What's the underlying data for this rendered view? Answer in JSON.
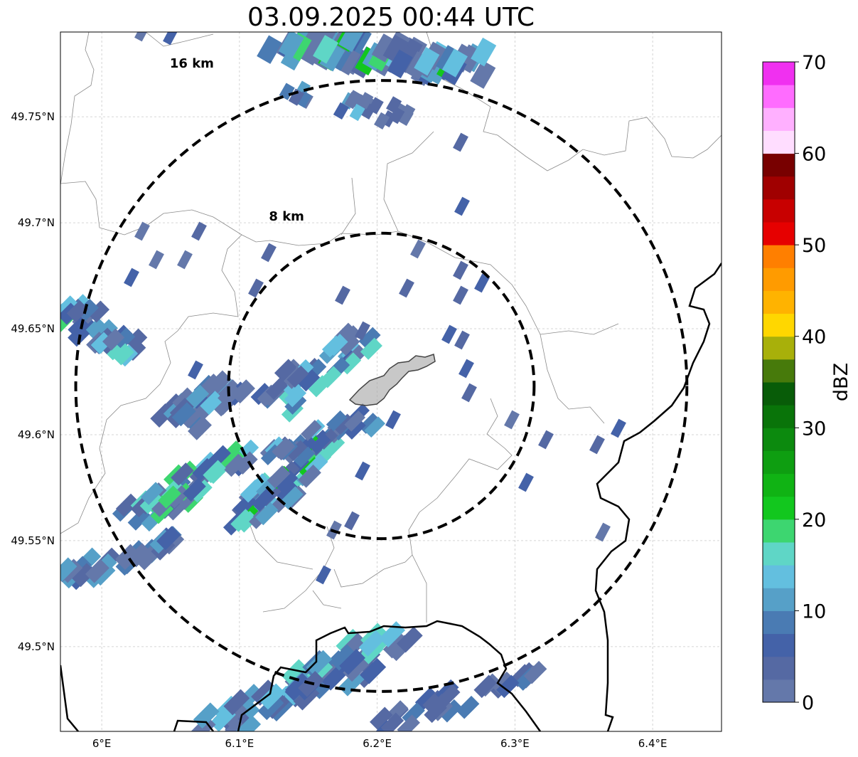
{
  "title": "03.09.2025 00:44 UTC",
  "map": {
    "x_ticks": [
      {
        "lon": 6.0,
        "label": "6°E"
      },
      {
        "lon": 6.1,
        "label": "6.1°E"
      },
      {
        "lon": 6.2,
        "label": "6.2°E"
      },
      {
        "lon": 6.3,
        "label": "6.3°E"
      },
      {
        "lon": 6.4,
        "label": "6.4°E"
      }
    ],
    "y_ticks": [
      {
        "lat": 49.75,
        "label": "49.75°N"
      },
      {
        "lat": 49.7,
        "label": "49.7°N"
      },
      {
        "lat": 49.65,
        "label": "49.65°N"
      },
      {
        "lat": 49.6,
        "label": "49.6°N"
      },
      {
        "lat": 49.55,
        "label": "49.55°N"
      },
      {
        "lat": 49.5,
        "label": "49.5°N"
      }
    ],
    "gridlines": true,
    "lon_range": [
      5.97,
      6.45
    ],
    "lat_range": [
      49.46,
      49.79
    ],
    "center": {
      "lon": 6.203,
      "lat": 49.623
    },
    "range_rings": [
      {
        "radius_km": 8,
        "label": "8 km"
      },
      {
        "radius_km": 16,
        "label": "16 km"
      }
    ]
  },
  "colorbar": {
    "label": "dBZ",
    "ticks": [
      "0",
      "10",
      "20",
      "30",
      "40",
      "50",
      "60",
      "70"
    ],
    "colors": [
      "#6478aa",
      "#5569a3",
      "#4462a8",
      "#4a7bb3",
      "#56a0c8",
      "#63bfdf",
      "#5fd6c6",
      "#3dd670",
      "#12c71e",
      "#10b314",
      "#0e9e11",
      "#0c8a0e",
      "#097409",
      "#085c08",
      "#477a0b",
      "#a8b00a",
      "#ffd700",
      "#ffb300",
      "#ff9b00",
      "#ff7f00",
      "#e60000",
      "#c80000",
      "#a00000",
      "#780000",
      "#ffddff",
      "#ffb0ff",
      "#ff6cff",
      "#f030f0"
    ]
  }
}
